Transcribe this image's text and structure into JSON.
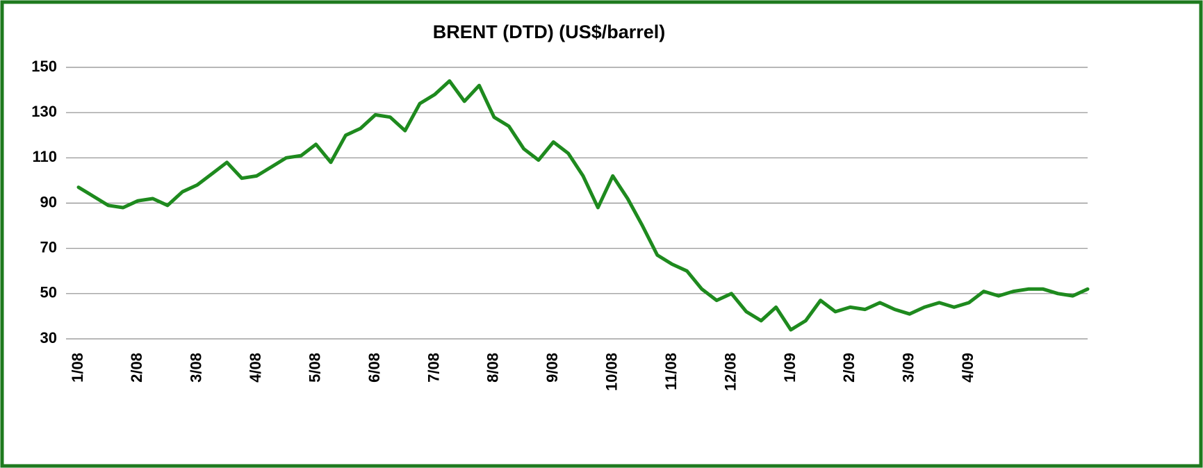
{
  "chart_data": {
    "type": "line",
    "title": "BRENT (DTD) (US$/barrel)",
    "categories": [
      "1/08",
      null,
      null,
      null,
      "2/08",
      null,
      null,
      null,
      "3/08",
      null,
      null,
      null,
      "4/08",
      null,
      null,
      null,
      "5/08",
      null,
      null,
      null,
      "6/08",
      null,
      null,
      null,
      "7/08",
      null,
      null,
      null,
      "8/08",
      null,
      null,
      null,
      "9/08",
      null,
      null,
      null,
      "10/08",
      null,
      null,
      null,
      "11/08",
      null,
      null,
      null,
      "12/08",
      null,
      null,
      null,
      "1/09",
      null,
      null,
      null,
      "2/09",
      null,
      null,
      null,
      "3/09",
      null,
      null,
      null,
      "4/09",
      null,
      null,
      null,
      null,
      null,
      null,
      null,
      null
    ],
    "series": [
      {
        "name": "BRENT (DTD)",
        "color": "#1e8a1e",
        "values": [
          97,
          93,
          89,
          88,
          91,
          92,
          89,
          95,
          98,
          103,
          108,
          101,
          102,
          106,
          110,
          111,
          116,
          108,
          120,
          123,
          129,
          128,
          122,
          134,
          138,
          144,
          135,
          142,
          128,
          124,
          114,
          109,
          117,
          112,
          102,
          88,
          102,
          92,
          80,
          67,
          63,
          60,
          52,
          47,
          50,
          42,
          38,
          44,
          34,
          38,
          47,
          42,
          44,
          43,
          46,
          43,
          41,
          44,
          46,
          44,
          46,
          51,
          49,
          51,
          52,
          52,
          50,
          49,
          52
        ]
      }
    ],
    "ylim": [
      30,
      150
    ],
    "yticks": [
      30,
      50,
      70,
      90,
      110,
      130,
      150
    ],
    "grid": true
  }
}
